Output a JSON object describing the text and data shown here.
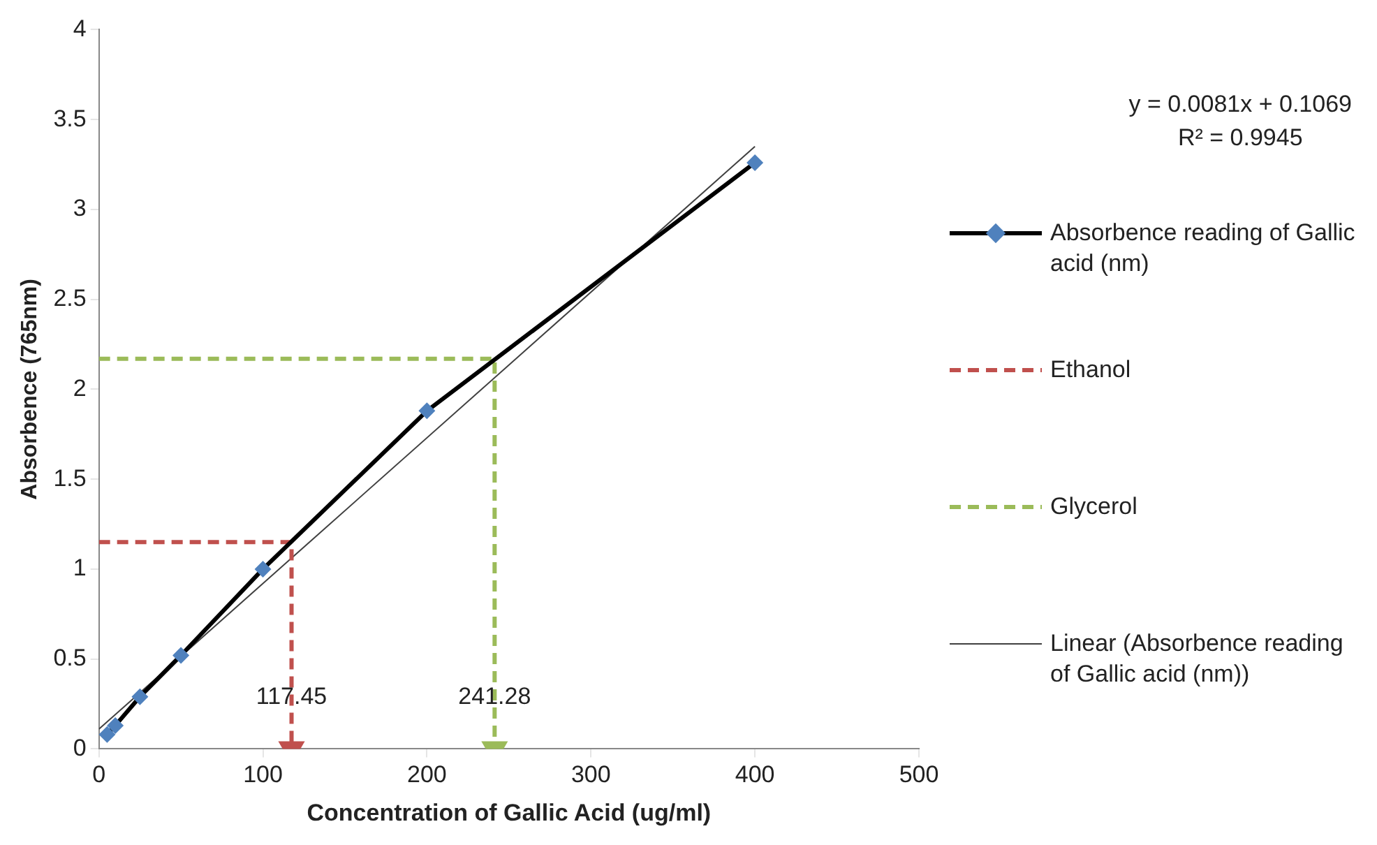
{
  "chart_data": {
    "type": "line",
    "xlabel": "Concentration of Gallic Acid (ug/ml)",
    "ylabel": "Absorbence (765nm)",
    "xlim": [
      0,
      500
    ],
    "xticks": [
      0,
      100,
      200,
      300,
      400,
      500
    ],
    "ylim": [
      0,
      4
    ],
    "yticks": [
      0,
      0.5,
      1,
      1.5,
      2,
      2.5,
      3,
      3.5,
      4
    ],
    "grid": false,
    "legend": "right",
    "series": [
      {
        "name": "Absorbence reading of Gallic acid (nm)",
        "color": "#000000",
        "marker": "diamond",
        "line_style": "solid",
        "x": [
          5,
          10,
          25,
          50,
          100,
          200,
          400
        ],
        "values": [
          0.08,
          0.13,
          0.29,
          0.52,
          1.0,
          1.88,
          3.26
        ]
      },
      {
        "name": "Ethanol",
        "color": "#c0504d",
        "marker": "none",
        "line_style": "dashed",
        "x": [
          0,
          117.45,
          117.45
        ],
        "values": [
          1.15,
          1.15,
          0
        ]
      },
      {
        "name": "Glycerol",
        "color": "#9bbb59",
        "marker": "none",
        "line_style": "dashed",
        "x": [
          0,
          241.28,
          241.28
        ],
        "values": [
          2.17,
          2.17,
          0
        ]
      },
      {
        "name": "Linear (Absorbence reading of Gallic acid (nm))",
        "color": "#404040",
        "marker": "none",
        "line_style": "solid",
        "x": [
          0,
          400
        ],
        "values": [
          0.11,
          3.35
        ]
      }
    ],
    "annotations": [
      "y = 0.0081x + 0.1069",
      "R² = 0.9945",
      {
        "text": "117.45",
        "x": 117.45,
        "y": 0.22
      },
      {
        "text": "241.28",
        "x": 241.28,
        "y": 0.22
      }
    ]
  }
}
